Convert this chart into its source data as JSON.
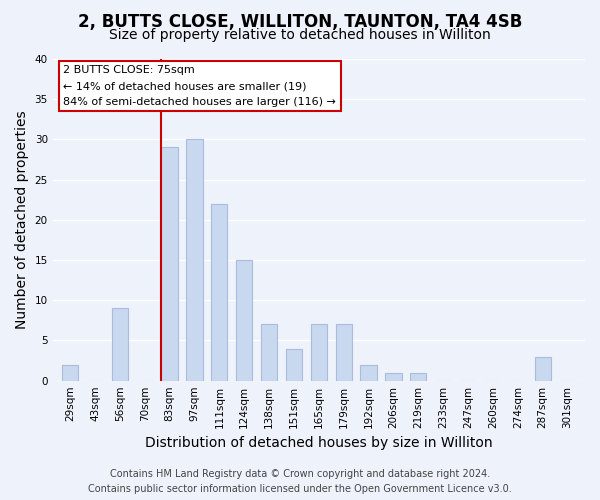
{
  "title": "2, BUTTS CLOSE, WILLITON, TAUNTON, TA4 4SB",
  "subtitle": "Size of property relative to detached houses in Williton",
  "xlabel": "Distribution of detached houses by size in Williton",
  "ylabel": "Number of detached properties",
  "bar_labels": [
    "29sqm",
    "43sqm",
    "56sqm",
    "70sqm",
    "83sqm",
    "97sqm",
    "111sqm",
    "124sqm",
    "138sqm",
    "151sqm",
    "165sqm",
    "179sqm",
    "192sqm",
    "206sqm",
    "219sqm",
    "233sqm",
    "247sqm",
    "260sqm",
    "274sqm",
    "287sqm",
    "301sqm"
  ],
  "bar_values": [
    2,
    0,
    9,
    0,
    29,
    30,
    22,
    15,
    7,
    4,
    7,
    7,
    2,
    1,
    1,
    0,
    0,
    0,
    0,
    3,
    0
  ],
  "bar_color": "#c8d8ee",
  "bar_edge_color": "#aabbdd",
  "red_line_color": "#cc0000",
  "ylim": [
    0,
    40
  ],
  "yticks": [
    0,
    5,
    10,
    15,
    20,
    25,
    30,
    35,
    40
  ],
  "annotation_title": "2 BUTTS CLOSE: 75sqm",
  "annotation_line1": "← 14% of detached houses are smaller (19)",
  "annotation_line2": "84% of semi-detached houses are larger (116) →",
  "annotation_box_color": "#ffffff",
  "annotation_box_edge": "#cc0000",
  "footer_line1": "Contains HM Land Registry data © Crown copyright and database right 2024.",
  "footer_line2": "Contains public sector information licensed under the Open Government Licence v3.0.",
  "background_color": "#eef2fa",
  "grid_color": "#ffffff",
  "title_fontsize": 12,
  "subtitle_fontsize": 10,
  "axis_label_fontsize": 10,
  "tick_fontsize": 7.5,
  "footer_fontsize": 7,
  "red_line_bar_index": 4
}
